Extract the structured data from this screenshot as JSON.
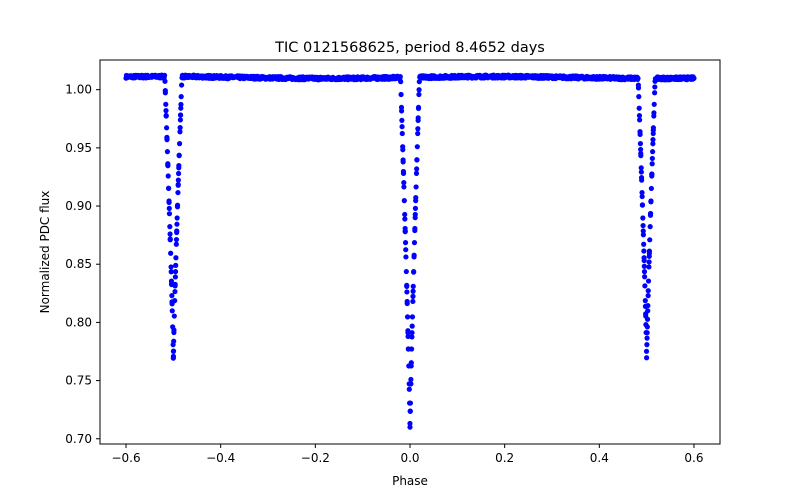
{
  "chart_data": {
    "type": "scatter",
    "title": "TIC 0121568625, period 8.4652 days",
    "xlabel": "Phase",
    "ylabel": "Normalized PDC flux",
    "xlim": [
      -0.655,
      0.655
    ],
    "ylim": [
      0.6955,
      1.0255
    ],
    "xticks": [
      -0.6,
      -0.4,
      -0.2,
      0.0,
      0.2,
      0.4,
      0.6
    ],
    "xtick_labels": [
      "−0.6",
      "−0.4",
      "−0.2",
      "0.0",
      "0.2",
      "0.4",
      "0.6"
    ],
    "yticks": [
      0.7,
      0.75,
      0.8,
      0.85,
      0.9,
      0.95,
      1.0
    ],
    "ytick_labels": [
      "0.70",
      "0.75",
      "0.80",
      "0.85",
      "0.90",
      "0.95",
      "1.00"
    ],
    "color": "#0000ff",
    "grid": false,
    "series": [
      {
        "name": "flux",
        "baseline_flux": 1.0105,
        "phase_range": [
          -0.6,
          0.6
        ],
        "eclipses": [
          {
            "center": -0.5,
            "min_flux": 0.768,
            "half_width": 0.018
          },
          {
            "center": 0.0,
            "min_flux": 0.71,
            "half_width": 0.02
          },
          {
            "center": 0.5,
            "min_flux": 0.768,
            "half_width": 0.018
          }
        ],
        "sample_points": [
          {
            "x": -0.6,
            "y": 1.012
          },
          {
            "x": -0.5,
            "y": 0.769
          },
          {
            "x": -0.4,
            "y": 1.011
          },
          {
            "x": -0.2,
            "y": 1.009
          },
          {
            "x": 0.0,
            "y": 0.71
          },
          {
            "x": 0.2,
            "y": 1.012
          },
          {
            "x": 0.4,
            "y": 1.011
          },
          {
            "x": 0.5,
            "y": 0.769
          },
          {
            "x": 0.6,
            "y": 1.01
          }
        ]
      }
    ]
  }
}
